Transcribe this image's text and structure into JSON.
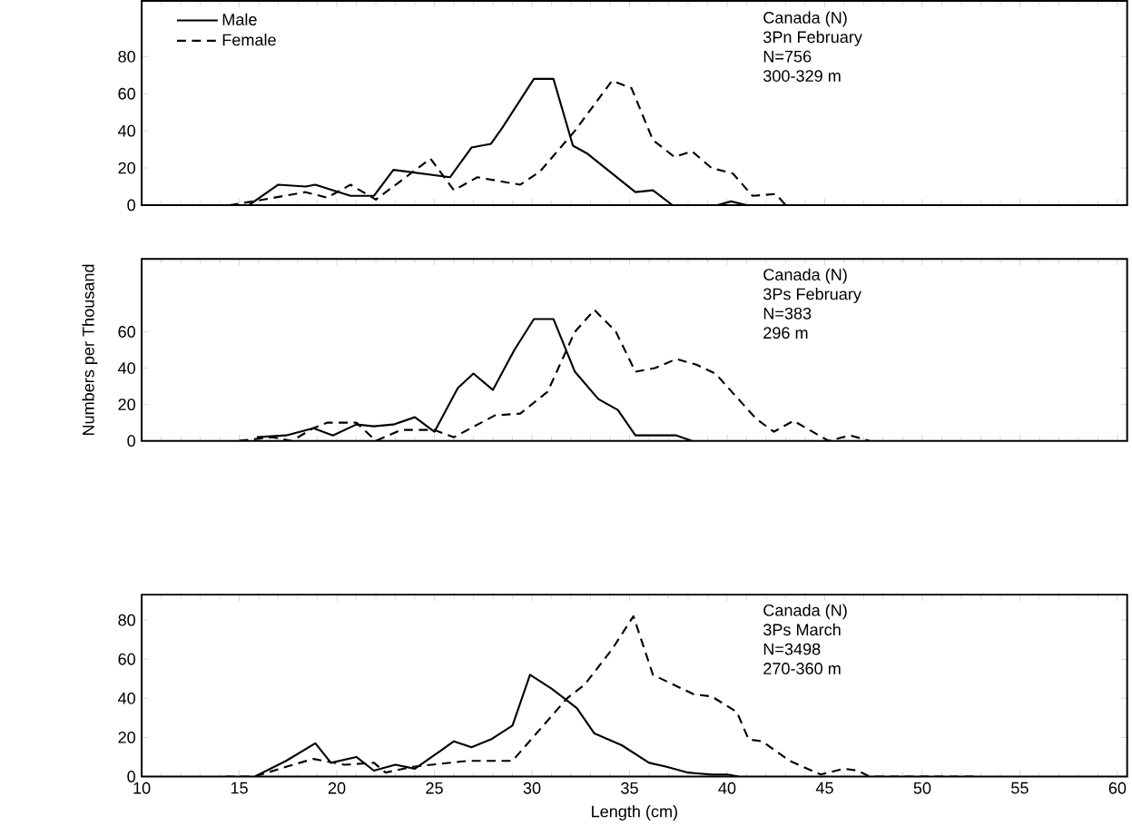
{
  "chart_data": [
    {
      "type": "line",
      "legend": "top left",
      "tick_labels": "y",
      "xlim": [
        10,
        60.5
      ],
      "xticks": [
        10,
        15,
        20,
        25,
        30,
        35,
        40,
        45,
        50,
        55,
        60
      ],
      "ylim": [
        0,
        110
      ],
      "yticks": [
        0,
        20,
        40,
        60,
        80
      ],
      "annotations": [
        "Canada (N)",
        "3Pn February",
        "N=756",
        "300-329 m"
      ],
      "series": [
        {
          "name": "Male",
          "color": "#000000",
          "line_style": "solid",
          "x": [
            15.5,
            17,
            18.4,
            18.9,
            20.7,
            21.9,
            22.9,
            25.8,
            26.9,
            27.9,
            28.5,
            30.1,
            31.1,
            32.1,
            32.8,
            35.3,
            36.2,
            37.2,
            39.5,
            40.2,
            41
          ],
          "values": [
            0,
            11,
            10,
            11,
            5,
            5,
            19,
            15,
            31,
            33,
            42,
            68,
            68,
            32,
            28,
            7,
            8,
            0,
            0,
            2,
            0
          ]
        },
        {
          "name": "Female",
          "color": "#000000",
          "line_style": "dashed",
          "x": [
            14.5,
            15.7,
            18.4,
            19.5,
            20.7,
            22,
            24.8,
            26,
            27.2,
            29.4,
            30.4,
            32.2,
            34.1,
            35.1,
            36.2,
            37.3,
            38.2,
            39.2,
            40.3,
            41.3,
            42.5,
            43,
            45.2
          ],
          "values": [
            0,
            2,
            7,
            4,
            11,
            3,
            25,
            8,
            15,
            11,
            18,
            40,
            67,
            63,
            35,
            26,
            29,
            20,
            17,
            5,
            6,
            0,
            0
          ]
        }
      ]
    },
    {
      "type": "line",
      "tick_labels": "y",
      "ylabel": "Numbers per Thousand",
      "xlim": [
        10,
        60.5
      ],
      "xticks": [
        10,
        15,
        20,
        25,
        30,
        35,
        40,
        45,
        50,
        55,
        60
      ],
      "ylim": [
        0,
        100
      ],
      "yticks": [
        0,
        20,
        40,
        60
      ],
      "annotations": [
        "Canada (N)",
        "3Ps February",
        "N=383",
        "296 m"
      ],
      "series": [
        {
          "color": "#000000",
          "line_style": "solid",
          "x": [
            15.9,
            17.4,
            18.8,
            19.8,
            21,
            21.9,
            22.9,
            24,
            25,
            26.2,
            27,
            28,
            29.1,
            30.1,
            31.1,
            32.2,
            33.4,
            34.4,
            35.3,
            37.4,
            38.2
          ],
          "values": [
            2,
            3,
            7,
            3,
            9,
            8,
            9,
            13,
            5,
            29,
            37,
            28,
            50,
            67,
            67,
            38,
            23,
            17,
            3,
            3,
            0
          ]
        },
        {
          "color": "#000000",
          "line_style": "dashed",
          "x": [
            15,
            16.7,
            17.7,
            18.8,
            19.5,
            21,
            22,
            23.3,
            25,
            26,
            28.1,
            29.4,
            30.8,
            32.2,
            33.2,
            34.3,
            35.3,
            36.3,
            37.4,
            38.4,
            39.4,
            41.5,
            42.4,
            43.4,
            45.2,
            46.3,
            47.3
          ],
          "values": [
            0,
            2,
            0,
            7,
            10,
            10,
            0,
            6,
            6,
            2,
            14,
            15,
            27,
            60,
            72,
            60,
            38,
            40,
            45,
            42,
            37,
            12,
            5,
            11,
            0,
            3,
            0
          ]
        }
      ]
    },
    {
      "type": "line",
      "xlabel": "Length (cm)",
      "xlim": [
        10,
        60.5
      ],
      "xticks": [
        10,
        15,
        20,
        25,
        30,
        35,
        40,
        45,
        50,
        55,
        60
      ],
      "ylim": [
        0,
        93
      ],
      "yticks": [
        0,
        20,
        40,
        60,
        80
      ],
      "annotations": [
        "Canada (N)",
        "3Ps March",
        "N=3498",
        "270-360 m"
      ],
      "series": [
        {
          "color": "#000000",
          "line_style": "solid",
          "x": [
            15.8,
            17.4,
            18.9,
            19.7,
            21,
            21.9,
            23,
            24,
            25.3,
            26,
            26.9,
            27.9,
            29,
            29.9,
            31,
            32.3,
            33.2,
            34.6,
            36,
            36.9,
            38,
            39.2,
            40,
            40.6
          ],
          "values": [
            0,
            8,
            17,
            7,
            10,
            3,
            6,
            4,
            13,
            18,
            15,
            19,
            26,
            52,
            45,
            35,
            22,
            16,
            7,
            5,
            2,
            1,
            1,
            0
          ]
        },
        {
          "color": "#000000",
          "line_style": "dashed",
          "x": [
            14.3,
            15.8,
            17.4,
            18.8,
            20.4,
            21.9,
            22.5,
            23.9,
            26.7,
            29,
            31.8,
            32.7,
            34.1,
            35.2,
            36.2,
            38.3,
            39.2,
            40.5,
            41.1,
            41.8,
            43.2,
            44.8,
            46,
            46.7,
            47.3,
            52.7
          ],
          "values": [
            0,
            0,
            5,
            9,
            6,
            7,
            2,
            5,
            8,
            8,
            40,
            47,
            65,
            82,
            52,
            42,
            41,
            33,
            19,
            18,
            8,
            1,
            4,
            3,
            0,
            0
          ]
        }
      ]
    }
  ]
}
